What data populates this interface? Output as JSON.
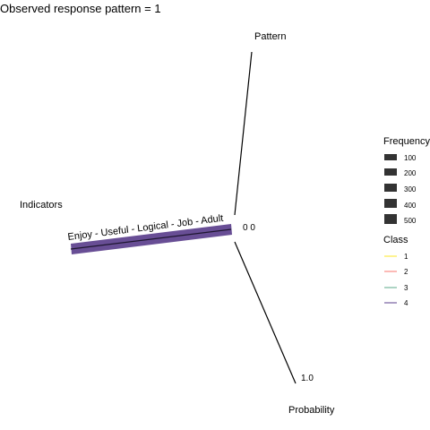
{
  "chart_data": {
    "type": "line",
    "title": "Observed response pattern = 1",
    "axes": {
      "indicators": {
        "label": "Indicators"
      },
      "pattern": {
        "label": "Pattern"
      },
      "probability": {
        "label": "Probability",
        "range": [
          0.0,
          1.0
        ],
        "tick_labels": [
          "0.0",
          "1.0"
        ]
      }
    },
    "indicator_label": "Enjoy - Useful - Logical - Job - Adult",
    "origin_label": "0 0",
    "series": [
      {
        "class": "4",
        "pattern": 1,
        "probability": 0.0,
        "frequency": 500
      }
    ],
    "legend": {
      "position": "right",
      "frequency": {
        "title": "Frequency",
        "values": [
          "100",
          "200",
          "300",
          "400",
          "500"
        ]
      },
      "class": {
        "title": "Class",
        "entries": [
          {
            "label": "1",
            "color": "#fde725"
          },
          {
            "label": "2",
            "color": "#f8766d"
          },
          {
            "label": "3",
            "color": "#5ba88a"
          },
          {
            "label": "4",
            "color": "#5b3f8c"
          }
        ]
      }
    },
    "colors": {
      "axis": "#000000",
      "band": "#5b3f8c",
      "legend_key": "#333333"
    }
  }
}
